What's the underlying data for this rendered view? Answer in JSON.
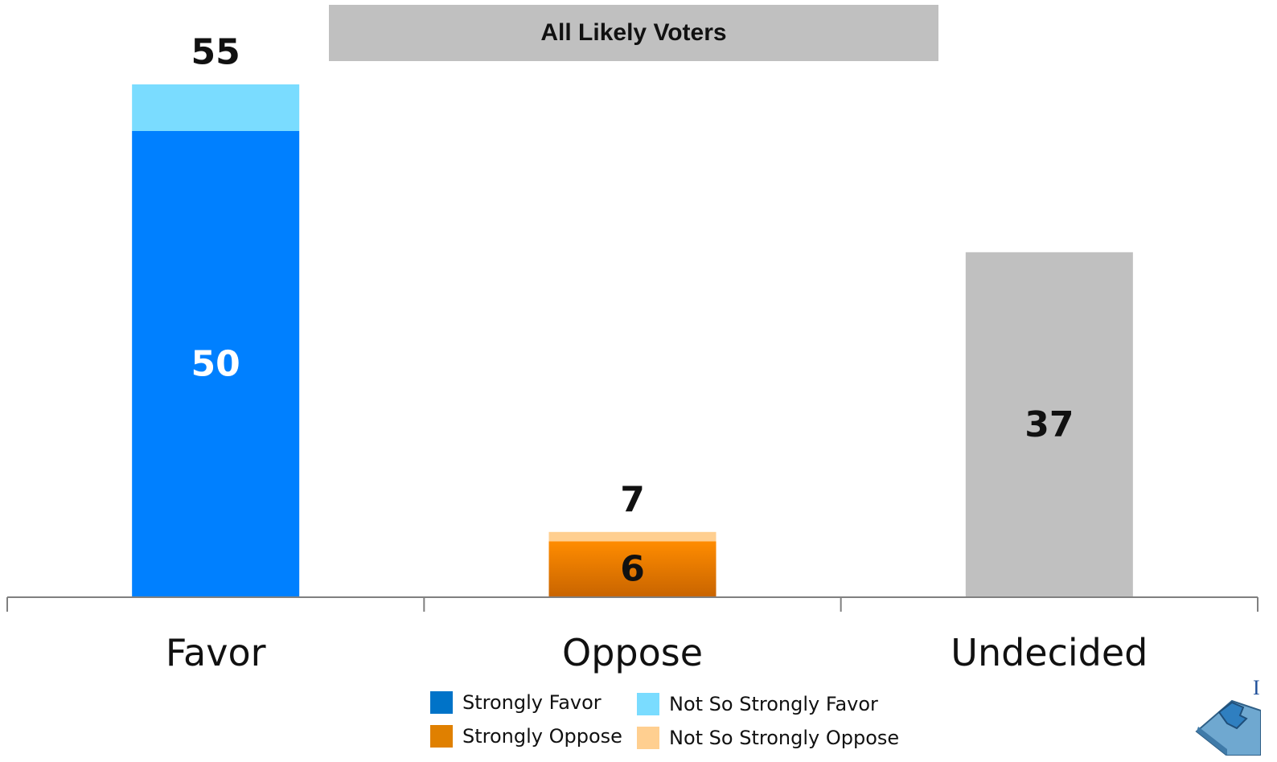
{
  "chart_data": {
    "type": "bar",
    "stacked": true,
    "title": "All Likely Voters",
    "categories": [
      "Favor",
      "Oppose",
      "Undecided"
    ],
    "ylim": [
      0,
      57.5
    ],
    "grid": false,
    "legend_placement": "bottom",
    "series": [
      {
        "name": "Strongly Favor",
        "color": "#0080ff",
        "values": [
          50,
          0,
          0
        ],
        "labels": [
          "50",
          "",
          ""
        ]
      },
      {
        "name": "Not So Strongly Favor",
        "color": "#7adcff",
        "values": [
          5,
          0,
          0
        ],
        "labels": [
          "",
          "",
          ""
        ]
      },
      {
        "name": "Strongly Oppose",
        "color": "#f08000",
        "values": [
          0,
          6,
          0
        ],
        "labels": [
          "",
          "6",
          ""
        ]
      },
      {
        "name": "Not So Strongly Oppose",
        "color": "#ffcf90",
        "values": [
          0,
          1,
          0
        ],
        "labels": [
          "",
          "",
          ""
        ]
      },
      {
        "name": "",
        "color": "#c0c0c0",
        "values": [
          0,
          0,
          37
        ],
        "labels": [
          "",
          "",
          "37"
        ]
      }
    ],
    "totals": [
      "55",
      "7",
      ""
    ],
    "legend": [
      {
        "label": "Strongly Favor",
        "color": "#0073c8"
      },
      {
        "label": "Not So Strongly Favor",
        "color": "#7adcff"
      },
      {
        "label": "Strongly Oppose",
        "color": "#e08000"
      },
      {
        "label": "Not So Strongly Oppose",
        "color": "#ffcf90"
      }
    ]
  },
  "logo": {
    "icon": "puzzle-logo-icon",
    "letter": "I"
  }
}
